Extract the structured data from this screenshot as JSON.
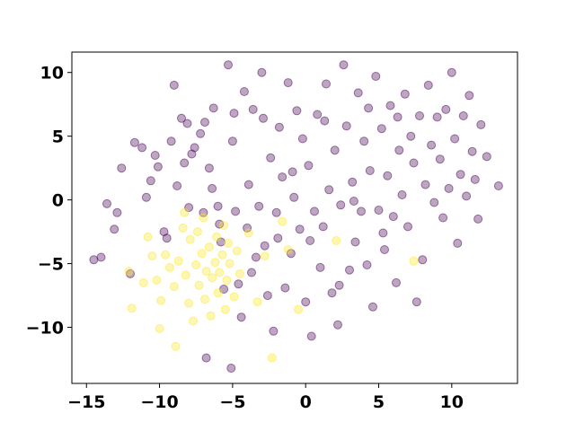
{
  "chart_data": {
    "type": "scatter",
    "title": "",
    "xlabel": "",
    "ylabel": "",
    "xlim": [
      -16.0,
      14.5
    ],
    "ylim": [
      -14.4,
      11.6
    ],
    "xticks": [
      -15,
      -10,
      -5,
      0,
      5,
      10
    ],
    "yticks": [
      -10,
      -5,
      0,
      5,
      10
    ],
    "xtick_labels": [
      "−15",
      "−10",
      "−5",
      "0",
      "5",
      "10"
    ],
    "ytick_labels": [
      "−10",
      "−5",
      "0",
      "5",
      "10"
    ],
    "grid": false,
    "legend": "none",
    "point_alpha": 0.35,
    "series": [
      {
        "color": "#440154",
        "points": [
          [
            -14.5,
            -4.7
          ],
          [
            -14.0,
            -4.5
          ],
          [
            -13.6,
            -0.3
          ],
          [
            -13.1,
            -2.3
          ],
          [
            -12.9,
            -1.0
          ],
          [
            -12.6,
            2.5
          ],
          [
            -12.0,
            -5.8
          ],
          [
            -11.7,
            4.5
          ],
          [
            -11.2,
            4.1
          ],
          [
            -10.9,
            0.2
          ],
          [
            -10.6,
            1.5
          ],
          [
            -10.3,
            3.5
          ],
          [
            -10.1,
            2.6
          ],
          [
            -9.7,
            -2.5
          ],
          [
            -9.5,
            -3.0
          ],
          [
            -9.2,
            4.6
          ],
          [
            -9.0,
            9.0
          ],
          [
            -8.8,
            1.1
          ],
          [
            -8.5,
            6.4
          ],
          [
            -8.3,
            2.9
          ],
          [
            -8.1,
            6.0
          ],
          [
            -8.0,
            -0.6
          ],
          [
            -7.6,
            4.1
          ],
          [
            -7.2,
            5.2
          ],
          [
            -7.0,
            -1.0
          ],
          [
            -6.8,
            -12.4
          ],
          [
            -6.6,
            2.5
          ],
          [
            -6.4,
            0.9
          ],
          [
            -6.3,
            7.2
          ],
          [
            -6.0,
            -0.5
          ],
          [
            -5.8,
            -3.3
          ],
          [
            -5.6,
            -7.0
          ],
          [
            -5.3,
            10.6
          ],
          [
            -5.1,
            -13.2
          ],
          [
            -5.0,
            4.6
          ],
          [
            -4.8,
            -0.9
          ],
          [
            -4.6,
            -6.6
          ],
          [
            -4.4,
            -9.2
          ],
          [
            -4.2,
            8.5
          ],
          [
            -4.0,
            -2.2
          ],
          [
            -3.9,
            1.2
          ],
          [
            -3.6,
            7.1
          ],
          [
            -3.4,
            -4.5
          ],
          [
            -3.2,
            -0.5
          ],
          [
            -3.0,
            10.0
          ],
          [
            -2.8,
            -3.6
          ],
          [
            -2.6,
            -7.5
          ],
          [
            -2.4,
            3.3
          ],
          [
            -2.2,
            -10.3
          ],
          [
            -2.0,
            -1.0
          ],
          [
            -1.8,
            5.7
          ],
          [
            -1.6,
            1.8
          ],
          [
            -1.4,
            -6.9
          ],
          [
            -1.2,
            9.2
          ],
          [
            -1.0,
            -4.2
          ],
          [
            -0.8,
            0.2
          ],
          [
            -0.6,
            7.0
          ],
          [
            -0.4,
            -2.3
          ],
          [
            -0.2,
            4.8
          ],
          [
            0.0,
            -8.0
          ],
          [
            0.2,
            2.7
          ],
          [
            0.4,
            -10.7
          ],
          [
            0.6,
            -0.9
          ],
          [
            0.8,
            6.7
          ],
          [
            1.0,
            -5.3
          ],
          [
            1.2,
            -2.1
          ],
          [
            1.4,
            9.1
          ],
          [
            1.6,
            0.8
          ],
          [
            1.8,
            -7.3
          ],
          [
            2.0,
            3.9
          ],
          [
            2.2,
            -9.8
          ],
          [
            2.4,
            -0.4
          ],
          [
            2.6,
            10.6
          ],
          [
            2.8,
            5.8
          ],
          [
            3.0,
            -5.5
          ],
          [
            3.2,
            1.4
          ],
          [
            3.4,
            -3.3
          ],
          [
            3.6,
            8.4
          ],
          [
            3.8,
            -0.9
          ],
          [
            4.0,
            4.6
          ],
          [
            4.2,
            -5.1
          ],
          [
            4.4,
            2.3
          ],
          [
            4.6,
            -8.4
          ],
          [
            4.8,
            9.7
          ],
          [
            5.0,
            -0.8
          ],
          [
            5.2,
            5.6
          ],
          [
            5.4,
            -3.9
          ],
          [
            5.6,
            1.9
          ],
          [
            5.8,
            7.4
          ],
          [
            6.0,
            -1.3
          ],
          [
            6.2,
            -6.5
          ],
          [
            6.4,
            3.9
          ],
          [
            6.6,
            0.4
          ],
          [
            6.8,
            8.3
          ],
          [
            7.0,
            -2.1
          ],
          [
            7.2,
            5.0
          ],
          [
            7.4,
            2.9
          ],
          [
            7.6,
            -8.0
          ],
          [
            7.8,
            6.6
          ],
          [
            8.0,
            -4.7
          ],
          [
            8.2,
            1.2
          ],
          [
            8.4,
            9.0
          ],
          [
            8.6,
            4.3
          ],
          [
            8.8,
            -0.2
          ],
          [
            9.0,
            6.5
          ],
          [
            9.2,
            3.2
          ],
          [
            9.4,
            -1.4
          ],
          [
            9.6,
            7.1
          ],
          [
            9.8,
            0.9
          ],
          [
            10.0,
            10.0
          ],
          [
            10.2,
            4.8
          ],
          [
            10.4,
            -3.4
          ],
          [
            10.6,
            2.0
          ],
          [
            10.8,
            6.6
          ],
          [
            11.0,
            0.3
          ],
          [
            11.2,
            8.2
          ],
          [
            11.4,
            3.8
          ],
          [
            11.6,
            1.6
          ],
          [
            11.8,
            -1.5
          ],
          [
            12.0,
            5.9
          ],
          [
            12.4,
            3.4
          ],
          [
            13.2,
            1.1
          ],
          [
            -7.8,
            3.6
          ],
          [
            -6.9,
            6.1
          ],
          [
            -5.9,
            -1.9
          ],
          [
            -4.9,
            6.8
          ],
          [
            -3.7,
            -5.7
          ],
          [
            -2.9,
            6.4
          ],
          [
            -1.9,
            -3.0
          ],
          [
            -0.9,
            2.2
          ],
          [
            0.3,
            -3.2
          ],
          [
            1.3,
            6.2
          ],
          [
            2.3,
            -6.7
          ],
          [
            3.3,
            -0.1
          ],
          [
            4.3,
            7.2
          ],
          [
            5.3,
            -2.6
          ],
          [
            6.3,
            6.5
          ]
        ]
      },
      {
        "color": "#fde725",
        "points": [
          [
            -12.1,
            -5.6
          ],
          [
            -11.9,
            -8.5
          ],
          [
            -11.1,
            -6.5
          ],
          [
            -10.8,
            -2.9
          ],
          [
            -10.5,
            -4.4
          ],
          [
            -10.2,
            -6.3
          ],
          [
            -10.0,
            -10.1
          ],
          [
            -9.9,
            -7.9
          ],
          [
            -9.6,
            -4.3
          ],
          [
            -9.3,
            -5.3
          ],
          [
            -9.0,
            -6.8
          ],
          [
            -8.9,
            -11.5
          ],
          [
            -8.7,
            -4.8
          ],
          [
            -8.4,
            -2.2
          ],
          [
            -8.2,
            -5.9
          ],
          [
            -8.0,
            -8.1
          ],
          [
            -7.9,
            -3.1
          ],
          [
            -7.7,
            -9.5
          ],
          [
            -7.5,
            -5.1
          ],
          [
            -7.4,
            -2.5
          ],
          [
            -7.3,
            -6.7
          ],
          [
            -7.1,
            -4.2
          ],
          [
            -6.9,
            -7.8
          ],
          [
            -6.8,
            -5.6
          ],
          [
            -6.6,
            -3.7
          ],
          [
            -6.5,
            -9.1
          ],
          [
            -6.4,
            -6.1
          ],
          [
            -6.2,
            -4.9
          ],
          [
            -6.1,
            -2.9
          ],
          [
            -6.0,
            -7.3
          ],
          [
            -5.9,
            -5.7
          ],
          [
            -5.7,
            -4.3
          ],
          [
            -5.5,
            -8.6
          ],
          [
            -5.4,
            -6.3
          ],
          [
            -5.3,
            -3.4
          ],
          [
            -5.2,
            -5.0
          ],
          [
            -4.9,
            -7.6
          ],
          [
            -4.7,
            -4.0
          ],
          [
            -4.5,
            -5.8
          ],
          [
            -3.9,
            -2.6
          ],
          [
            -3.3,
            -8.0
          ],
          [
            -2.8,
            -4.4
          ],
          [
            -2.3,
            -12.4
          ],
          [
            -1.6,
            -1.7
          ],
          [
            -1.2,
            -3.9
          ],
          [
            -0.5,
            -8.6
          ],
          [
            2.1,
            -3.2
          ],
          [
            7.4,
            -4.8
          ],
          [
            -7.0,
            -1.4
          ],
          [
            -8.3,
            -1.0
          ],
          [
            -5.6,
            -2.0
          ]
        ]
      }
    ]
  }
}
